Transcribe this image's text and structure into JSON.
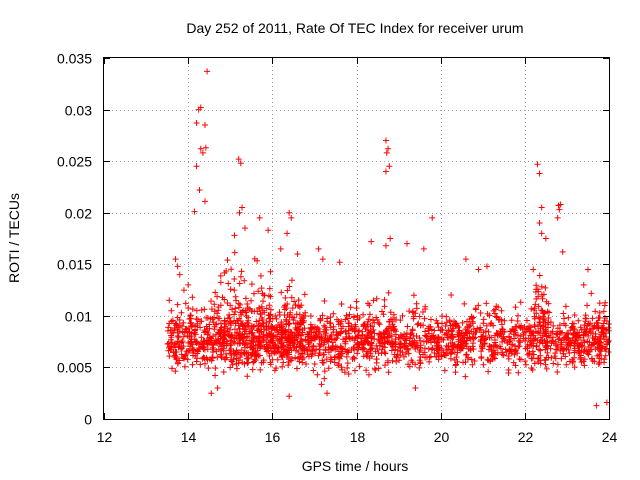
{
  "chart_data": {
    "type": "scatter",
    "title": "Day 252 of 2011, Rate Of TEC Index for receiver urum",
    "xlabel": "GPS time / hours",
    "ylabel": "ROTI / TECUs",
    "xlim": [
      12,
      24
    ],
    "ylim": [
      0,
      0.035
    ],
    "xticks": [
      "12",
      "14",
      "16",
      "18",
      "20",
      "22",
      "24"
    ],
    "yticks": [
      "0",
      "0.005",
      "0.01",
      "0.015",
      "0.02",
      "0.025",
      "0.03",
      "0.035"
    ],
    "grid": true,
    "marker": "+",
    "color": "#ff0000",
    "series": [
      {
        "name": "ROTI",
        "bands": [
          {
            "x_start": 13.5,
            "x_end": 24.0,
            "y_min": 0.004,
            "y_max": 0.011,
            "count": 1400
          },
          {
            "x_start": 13.6,
            "x_end": 24.0,
            "y_min": 0.003,
            "y_max": 0.0135,
            "count": 500
          },
          {
            "x_start": 14.5,
            "x_end": 16.0,
            "y_min": 0.0025,
            "y_max": 0.017,
            "count": 160
          },
          {
            "x_start": 16.2,
            "x_end": 16.8,
            "y_min": 0.003,
            "y_max": 0.015,
            "count": 80
          },
          {
            "x_start": 22.2,
            "x_end": 22.6,
            "y_min": 0.005,
            "y_max": 0.016,
            "count": 40
          }
        ],
        "points": [
          [
            14.25,
            0.03
          ],
          [
            14.3,
            0.0302
          ],
          [
            14.2,
            0.0287
          ],
          [
            14.4,
            0.0285
          ],
          [
            14.45,
            0.0337
          ],
          [
            14.3,
            0.0262
          ],
          [
            14.42,
            0.0263
          ],
          [
            14.35,
            0.0258
          ],
          [
            14.2,
            0.0245
          ],
          [
            14.27,
            0.0222
          ],
          [
            14.4,
            0.0211
          ],
          [
            14.15,
            0.0201
          ],
          [
            15.2,
            0.0252
          ],
          [
            15.25,
            0.0248
          ],
          [
            15.28,
            0.0205
          ],
          [
            15.22,
            0.02
          ],
          [
            15.35,
            0.0185
          ],
          [
            15.1,
            0.0178
          ],
          [
            15.7,
            0.0195
          ],
          [
            15.9,
            0.0183
          ],
          [
            16.4,
            0.02
          ],
          [
            16.45,
            0.0195
          ],
          [
            16.35,
            0.018
          ],
          [
            16.6,
            0.016
          ],
          [
            16.2,
            0.0165
          ],
          [
            17.1,
            0.0165
          ],
          [
            17.6,
            0.0152
          ],
          [
            17.2,
            0.0155
          ],
          [
            18.7,
            0.027
          ],
          [
            18.75,
            0.0262
          ],
          [
            18.72,
            0.0258
          ],
          [
            18.78,
            0.0245
          ],
          [
            18.7,
            0.024
          ],
          [
            18.7,
            0.0168
          ],
          [
            18.35,
            0.0172
          ],
          [
            18.8,
            0.0175
          ],
          [
            19.8,
            0.0195
          ],
          [
            19.6,
            0.0165
          ],
          [
            19.2,
            0.017
          ],
          [
            21.1,
            0.0148
          ],
          [
            20.6,
            0.0155
          ],
          [
            20.9,
            0.0145
          ],
          [
            22.3,
            0.0247
          ],
          [
            22.35,
            0.0238
          ],
          [
            22.4,
            0.0205
          ],
          [
            22.4,
            0.018
          ],
          [
            22.35,
            0.019
          ],
          [
            22.5,
            0.0175
          ],
          [
            22.8,
            0.0207
          ],
          [
            22.82,
            0.0203
          ],
          [
            22.85,
            0.0208
          ],
          [
            22.78,
            0.0195
          ],
          [
            22.2,
            0.0145
          ],
          [
            22.9,
            0.0162
          ],
          [
            23.4,
            0.013
          ],
          [
            23.5,
            0.0145
          ],
          [
            13.55,
            0.0115
          ],
          [
            13.6,
            0.0105
          ],
          [
            13.7,
            0.0155
          ],
          [
            13.75,
            0.0148
          ],
          [
            13.8,
            0.014
          ],
          [
            13.65,
            0.0065
          ],
          [
            13.7,
            0.006
          ],
          [
            13.8,
            0.0085
          ],
          [
            13.9,
            0.0125
          ],
          [
            14.0,
            0.013
          ],
          [
            14.55,
            0.0025
          ],
          [
            14.7,
            0.003
          ],
          [
            16.4,
            0.0022
          ],
          [
            17.3,
            0.0025
          ],
          [
            19.4,
            0.003
          ],
          [
            23.7,
            0.0013
          ],
          [
            23.95,
            0.0016
          ],
          [
            23.9,
            0.011
          ],
          [
            23.95,
            0.0095
          ],
          [
            14.1,
            0.0118
          ]
        ]
      }
    ]
  }
}
